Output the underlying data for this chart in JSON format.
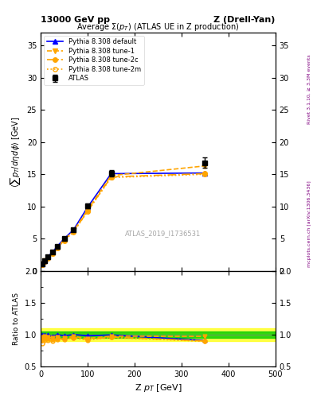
{
  "title_top_left": "13000 GeV pp",
  "title_top_right": "Z (Drell-Yan)",
  "plot_title": "Average Σ(p_{T}) (ATLAS UE in Z production)",
  "ylabel_main": "<sum p_{T}/dη dϕ> [GeV]",
  "ylabel_ratio": "Ratio to ATLAS",
  "xlabel": "Z p_{T} [GeV]",
  "right_label_top": "Rivet 3.1.10, ≥ 3.3M events",
  "right_label_bottom": "mcplots.cern.ch [arXiv:1306.3436]",
  "watermark": "ATLAS_2019_I1736531",
  "atlas_data_x": [
    2.5,
    7.5,
    15,
    25,
    35,
    50,
    70,
    100,
    150,
    350
  ],
  "atlas_data_y": [
    1.1,
    1.6,
    2.2,
    3.0,
    3.8,
    5.1,
    6.4,
    10.1,
    15.2,
    16.8
  ],
  "atlas_data_yerr": [
    0.05,
    0.08,
    0.1,
    0.12,
    0.15,
    0.2,
    0.25,
    0.35,
    0.5,
    0.8
  ],
  "pythia_default_x": [
    2.5,
    7.5,
    15,
    25,
    35,
    50,
    70,
    100,
    150,
    350
  ],
  "pythia_default_y": [
    1.1,
    1.6,
    2.2,
    2.9,
    3.8,
    5.0,
    6.4,
    9.9,
    15.1,
    15.2
  ],
  "pythia_tune1_x": [
    2.5,
    7.5,
    15,
    25,
    35,
    50,
    70,
    100,
    150,
    350
  ],
  "pythia_tune1_y": [
    1.05,
    1.55,
    2.1,
    2.85,
    3.65,
    4.85,
    6.2,
    9.5,
    14.8,
    16.3
  ],
  "pythia_tune2c_x": [
    2.5,
    7.5,
    15,
    25,
    35,
    50,
    70,
    100,
    150,
    350
  ],
  "pythia_tune2c_y": [
    1.0,
    1.5,
    2.05,
    2.75,
    3.55,
    4.75,
    6.1,
    9.3,
    14.6,
    15.1
  ],
  "pythia_tune2m_x": [
    2.5,
    7.5,
    15,
    25,
    35,
    50,
    70,
    100,
    150,
    350
  ],
  "pythia_tune2m_y": [
    0.95,
    1.45,
    2.0,
    2.7,
    3.5,
    4.7,
    6.05,
    9.25,
    14.5,
    15.0
  ],
  "ratio_atlas_band_inner": 0.05,
  "ratio_atlas_band_outer": 0.1,
  "color_atlas": "#000000",
  "color_default": "#0000ff",
  "color_tune1": "#ffa500",
  "color_tune2c": "#ffa500",
  "color_tune2m": "#ffa500",
  "ylim_main": [
    0,
    37
  ],
  "ylim_ratio": [
    0.5,
    2.0
  ],
  "xlim": [
    0,
    500
  ]
}
